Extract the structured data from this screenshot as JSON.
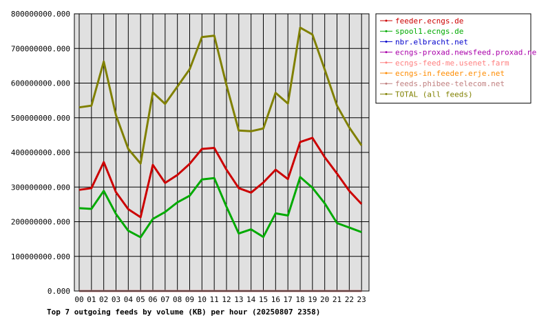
{
  "chart_data": {
    "type": "line",
    "title": "Top 7 outgoing feeds by volume (KB) per hour (20250807 2358)",
    "categories": [
      "00",
      "01",
      "02",
      "03",
      "04",
      "05",
      "06",
      "07",
      "08",
      "09",
      "10",
      "11",
      "12",
      "13",
      "14",
      "15",
      "16",
      "17",
      "18",
      "19",
      "20",
      "21",
      "22",
      "23"
    ],
    "ylim": [
      0,
      800000000
    ],
    "yticks": [
      "0.000",
      "100000000.000",
      "200000000.000",
      "300000000.000",
      "400000000.000",
      "500000000.000",
      "600000000.000",
      "700000000.000",
      "800000000.000"
    ],
    "grid": true,
    "legend_position": "right",
    "series": [
      {
        "name": "feeder.ecngs.de",
        "color": "#cc0000",
        "values": [
          292000000,
          297000000,
          372000000,
          285000000,
          236000000,
          213000000,
          364000000,
          312000000,
          335000000,
          367000000,
          410000000,
          413000000,
          350000000,
          297000000,
          284000000,
          313000000,
          350000000,
          323000000,
          430000000,
          442000000,
          386000000,
          339000000,
          289000000,
          251000000
        ]
      },
      {
        "name": "spool1.ecngs.de",
        "color": "#00aa00",
        "values": [
          239000000,
          237000000,
          289000000,
          222000000,
          174000000,
          155000000,
          208000000,
          228000000,
          256000000,
          275000000,
          322000000,
          326000000,
          243000000,
          166000000,
          178000000,
          156000000,
          224000000,
          218000000,
          329000000,
          298000000,
          253000000,
          196000000,
          183000000,
          170000000
        ]
      },
      {
        "name": "nbr.elbracht.net",
        "color": "#0000cc",
        "values": [
          0,
          0,
          0,
          0,
          0,
          0,
          0,
          0,
          0,
          0,
          0,
          0,
          0,
          0,
          0,
          0,
          0,
          0,
          0,
          0,
          0,
          0,
          0,
          0
        ]
      },
      {
        "name": "ecngs-proxad.newsfeed.proxad.net",
        "color": "#aa00aa",
        "values": [
          0,
          0,
          0,
          0,
          0,
          0,
          0,
          0,
          0,
          0,
          0,
          0,
          0,
          0,
          0,
          0,
          0,
          0,
          0,
          0,
          0,
          0,
          0,
          0
        ]
      },
      {
        "name": "ecngs-feed-me.usenet.farm",
        "color": "#ff8080",
        "values": [
          0,
          0,
          0,
          0,
          0,
          0,
          0,
          0,
          0,
          0,
          0,
          0,
          0,
          0,
          0,
          0,
          0,
          0,
          0,
          0,
          0,
          0,
          0,
          0
        ]
      },
      {
        "name": "ecngs-in.feeder.erje.net",
        "color": "#ff8c00",
        "values": [
          0,
          0,
          0,
          0,
          0,
          0,
          0,
          0,
          0,
          0,
          0,
          0,
          0,
          0,
          0,
          0,
          0,
          0,
          0,
          0,
          0,
          0,
          0,
          0
        ]
      },
      {
        "name": "feeds.phibee-telecom.net",
        "color": "#c08080",
        "values": [
          0,
          0,
          0,
          0,
          0,
          0,
          0,
          0,
          0,
          0,
          0,
          0,
          0,
          0,
          0,
          0,
          0,
          0,
          0,
          0,
          0,
          0,
          0,
          0
        ]
      },
      {
        "name": "TOTAL (all feeds)",
        "color": "#808000",
        "values": [
          530000000,
          535000000,
          662000000,
          507000000,
          410000000,
          368000000,
          573000000,
          540000000,
          590000000,
          640000000,
          733000000,
          737000000,
          594000000,
          463000000,
          461000000,
          469000000,
          572000000,
          541000000,
          760000000,
          740000000,
          639000000,
          535000000,
          472000000,
          420000000
        ]
      }
    ]
  }
}
